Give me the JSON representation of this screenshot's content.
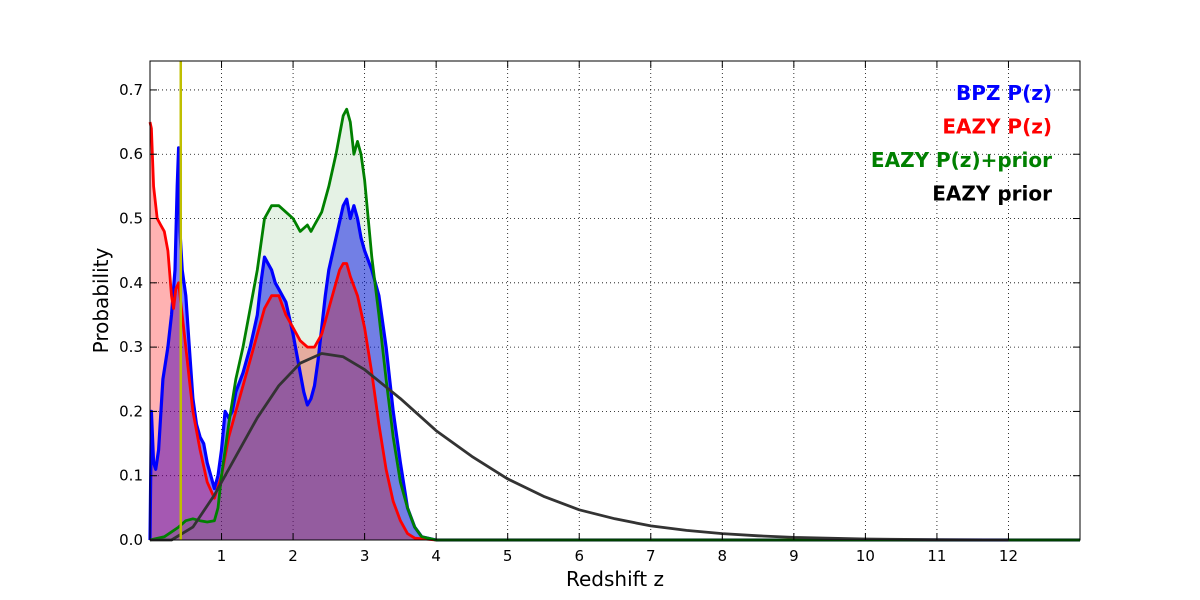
{
  "chart_data": {
    "type": "area",
    "xlabel": "Redshift z",
    "ylabel": "Probability",
    "xlim": [
      0,
      13
    ],
    "ylim": [
      0,
      0.745
    ],
    "x_ticks": [
      1,
      2,
      3,
      4,
      5,
      6,
      7,
      8,
      9,
      10,
      11,
      12
    ],
    "y_ticks": [
      0.0,
      0.1,
      0.2,
      0.3,
      0.4,
      0.5,
      0.6,
      0.7
    ],
    "y_tick_labels": [
      "0.0",
      "0.1",
      "0.2",
      "0.3",
      "0.4",
      "0.5",
      "0.6",
      "0.7"
    ],
    "grid": true,
    "legend_position": "top-right",
    "vline": {
      "x": 0.43,
      "color": "#bfbf00"
    },
    "series": [
      {
        "name": "BPZ P(z)",
        "color": "#0000ff",
        "fill": "#0000ff",
        "fill_opacity": 0.5,
        "x": [
          0,
          0.02,
          0.05,
          0.08,
          0.12,
          0.18,
          0.25,
          0.3,
          0.35,
          0.38,
          0.4,
          0.42,
          0.45,
          0.5,
          0.55,
          0.6,
          0.65,
          0.7,
          0.75,
          0.8,
          0.85,
          0.9,
          0.95,
          1.0,
          1.05,
          1.1,
          1.15,
          1.2,
          1.3,
          1.4,
          1.5,
          1.55,
          1.6,
          1.65,
          1.7,
          1.75,
          1.8,
          1.9,
          2.0,
          2.1,
          2.15,
          2.2,
          2.25,
          2.3,
          2.35,
          2.4,
          2.45,
          2.5,
          2.6,
          2.7,
          2.75,
          2.8,
          2.85,
          2.9,
          2.95,
          3.0,
          3.1,
          3.2,
          3.3,
          3.4,
          3.5,
          3.6,
          3.7,
          3.8,
          4.0,
          5.0,
          13.0
        ],
        "y": [
          0.0,
          0.2,
          0.12,
          0.11,
          0.14,
          0.25,
          0.3,
          0.35,
          0.42,
          0.55,
          0.61,
          0.48,
          0.42,
          0.38,
          0.3,
          0.22,
          0.18,
          0.16,
          0.15,
          0.12,
          0.1,
          0.08,
          0.1,
          0.14,
          0.2,
          0.19,
          0.2,
          0.23,
          0.26,
          0.3,
          0.35,
          0.4,
          0.44,
          0.43,
          0.42,
          0.4,
          0.39,
          0.37,
          0.32,
          0.26,
          0.23,
          0.21,
          0.22,
          0.24,
          0.28,
          0.33,
          0.38,
          0.42,
          0.47,
          0.52,
          0.53,
          0.5,
          0.52,
          0.5,
          0.47,
          0.45,
          0.42,
          0.38,
          0.3,
          0.2,
          0.12,
          0.05,
          0.02,
          0.005,
          0.0,
          0.0,
          0.0
        ]
      },
      {
        "name": "EAZY P(z)",
        "color": "#ff0000",
        "fill": "#ff0000",
        "fill_opacity": 0.3,
        "x": [
          0,
          0.02,
          0.05,
          0.1,
          0.15,
          0.2,
          0.25,
          0.3,
          0.33,
          0.36,
          0.4,
          0.45,
          0.5,
          0.55,
          0.6,
          0.7,
          0.8,
          0.9,
          1.0,
          1.1,
          1.2,
          1.3,
          1.4,
          1.5,
          1.6,
          1.7,
          1.8,
          1.9,
          2.0,
          2.1,
          2.2,
          2.3,
          2.4,
          2.5,
          2.6,
          2.65,
          2.7,
          2.75,
          2.8,
          2.9,
          3.0,
          3.1,
          3.2,
          3.3,
          3.4,
          3.5,
          3.6,
          3.7,
          4.0,
          13.0
        ],
        "y": [
          0.65,
          0.64,
          0.55,
          0.5,
          0.49,
          0.48,
          0.45,
          0.38,
          0.36,
          0.39,
          0.4,
          0.35,
          0.3,
          0.25,
          0.2,
          0.14,
          0.09,
          0.065,
          0.1,
          0.16,
          0.2,
          0.24,
          0.28,
          0.32,
          0.36,
          0.38,
          0.38,
          0.35,
          0.33,
          0.31,
          0.3,
          0.3,
          0.32,
          0.36,
          0.4,
          0.42,
          0.43,
          0.43,
          0.41,
          0.38,
          0.33,
          0.26,
          0.18,
          0.11,
          0.06,
          0.03,
          0.01,
          0.003,
          0.0,
          0.0
        ]
      },
      {
        "name": "EAZY P(z)+prior",
        "color": "#008000",
        "fill": "#008000",
        "fill_opacity": 0.1,
        "x": [
          0,
          0.2,
          0.4,
          0.5,
          0.6,
          0.7,
          0.8,
          0.9,
          0.95,
          1.0,
          1.1,
          1.2,
          1.3,
          1.4,
          1.5,
          1.55,
          1.6,
          1.7,
          1.8,
          1.9,
          2.0,
          2.1,
          2.2,
          2.25,
          2.3,
          2.4,
          2.5,
          2.6,
          2.65,
          2.7,
          2.75,
          2.8,
          2.85,
          2.9,
          2.95,
          3.0,
          3.05,
          3.1,
          3.2,
          3.3,
          3.4,
          3.5,
          3.6,
          3.7,
          3.8,
          4.0,
          13.0
        ],
        "y": [
          0.0,
          0.005,
          0.02,
          0.03,
          0.033,
          0.03,
          0.028,
          0.03,
          0.05,
          0.1,
          0.18,
          0.25,
          0.3,
          0.36,
          0.42,
          0.46,
          0.5,
          0.52,
          0.52,
          0.51,
          0.5,
          0.48,
          0.49,
          0.48,
          0.49,
          0.51,
          0.55,
          0.6,
          0.63,
          0.66,
          0.67,
          0.65,
          0.6,
          0.62,
          0.6,
          0.56,
          0.5,
          0.44,
          0.35,
          0.25,
          0.16,
          0.09,
          0.05,
          0.02,
          0.005,
          0.0,
          0.0
        ]
      },
      {
        "name": "EAZY prior",
        "color": "#333333",
        "fill": "none",
        "fill_opacity": 0,
        "x": [
          0,
          0.3,
          0.6,
          0.9,
          1.2,
          1.5,
          1.8,
          2.1,
          2.4,
          2.7,
          3.0,
          3.5,
          4.0,
          4.5,
          5.0,
          5.5,
          6.0,
          6.5,
          7.0,
          7.5,
          8.0,
          8.5,
          9.0,
          10.0,
          11.0,
          12.0
        ],
        "y": [
          0.0,
          0.0,
          0.02,
          0.07,
          0.13,
          0.19,
          0.24,
          0.275,
          0.29,
          0.285,
          0.265,
          0.22,
          0.17,
          0.13,
          0.095,
          0.068,
          0.047,
          0.033,
          0.022,
          0.015,
          0.01,
          0.0065,
          0.004,
          0.0015,
          0.0005,
          0.0
        ]
      }
    ]
  }
}
